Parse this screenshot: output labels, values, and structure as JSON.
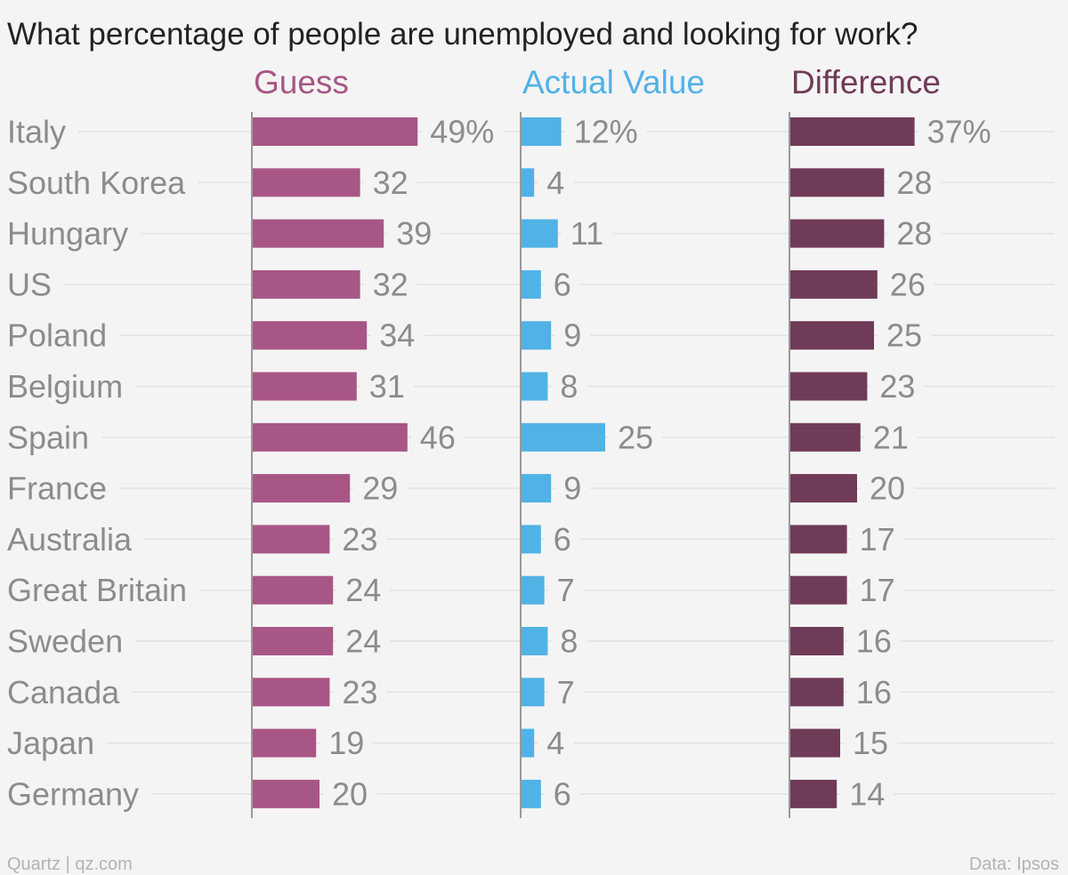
{
  "chart_data": {
    "type": "bar",
    "orientation": "horizontal",
    "title": "What percentage of people are unemployed and looking for work?",
    "categories": [
      "Italy",
      "South Korea",
      "Hungary",
      "US",
      "Poland",
      "Belgium",
      "Spain",
      "France",
      "Australia",
      "Great Britain",
      "Sweden",
      "Canada",
      "Japan",
      "Germany"
    ],
    "series": [
      {
        "name": "Guess",
        "color": "#a85686",
        "values": [
          49,
          32,
          39,
          32,
          34,
          31,
          46,
          29,
          23,
          24,
          24,
          23,
          19,
          20
        ]
      },
      {
        "name": "Actual Value",
        "color": "#51b2e5",
        "values": [
          12,
          4,
          11,
          6,
          9,
          8,
          25,
          9,
          6,
          7,
          8,
          7,
          4,
          6
        ]
      },
      {
        "name": "Difference",
        "color": "#703b58",
        "values": [
          37,
          28,
          28,
          26,
          25,
          23,
          21,
          20,
          17,
          17,
          16,
          16,
          15,
          14
        ]
      }
    ],
    "value_labels": [
      [
        "49%",
        "32",
        "39",
        "32",
        "34",
        "31",
        "46",
        "29",
        "23",
        "24",
        "24",
        "23",
        "19",
        "20"
      ],
      [
        "12%",
        "4",
        "11",
        "6",
        "9",
        "8",
        "25",
        "9",
        "6",
        "7",
        "8",
        "7",
        "4",
        "6"
      ],
      [
        "37%",
        "28",
        "28",
        "26",
        "25",
        "23",
        "21",
        "20",
        "17",
        "17",
        "16",
        "16",
        "15",
        "14"
      ]
    ],
    "xlim": [
      0,
      60
    ],
    "grid": true
  },
  "footer": {
    "source_left": "Quartz | qz.com",
    "source_right": "Data: Ipsos"
  },
  "colors": {
    "title": "#222222",
    "category_text": "#8c8c8c",
    "value_text": "#8c8c8c",
    "gridline": "#e2e2e2",
    "axis": "#999999",
    "footer_text": "#b3b3b3"
  }
}
